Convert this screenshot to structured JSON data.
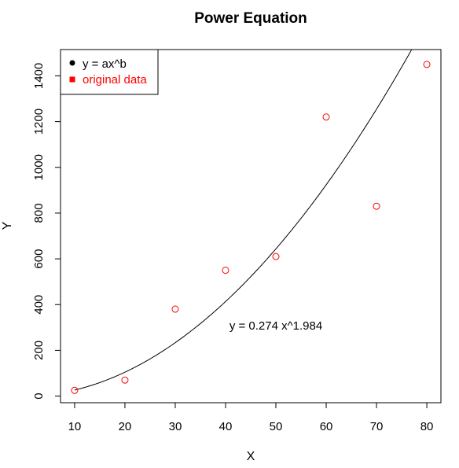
{
  "chart_data": {
    "type": "scatter",
    "title": "Power  Equation",
    "xlabel": "X",
    "ylabel": "Y",
    "xlim": [
      7.2,
      82.8
    ],
    "ylim": [
      -29,
      1515
    ],
    "x_ticks": [
      10,
      20,
      30,
      40,
      50,
      60,
      70,
      80
    ],
    "y_ticks": [
      0,
      200,
      400,
      600,
      800,
      1000,
      1200,
      1400
    ],
    "grid": false,
    "legend_position": "top-left",
    "series": [
      {
        "name": "original data",
        "kind": "points",
        "color": "#ff0000",
        "x": [
          10,
          20,
          30,
          40,
          50,
          60,
          70,
          80
        ],
        "y": [
          25,
          70,
          380,
          550,
          610,
          1220,
          830,
          1450
        ]
      },
      {
        "name": "y = ax^b",
        "kind": "line",
        "color": "#000000",
        "a": 0.274,
        "b": 1.984
      }
    ],
    "legend": [
      {
        "label": "y = ax^b",
        "color": "#000000",
        "symbol": "circle"
      },
      {
        "label": "original data",
        "color": "#ff0000",
        "symbol": "square"
      }
    ],
    "annotation": {
      "text": "y = 0.274 x^1.984",
      "x": 50,
      "y": 300
    }
  }
}
